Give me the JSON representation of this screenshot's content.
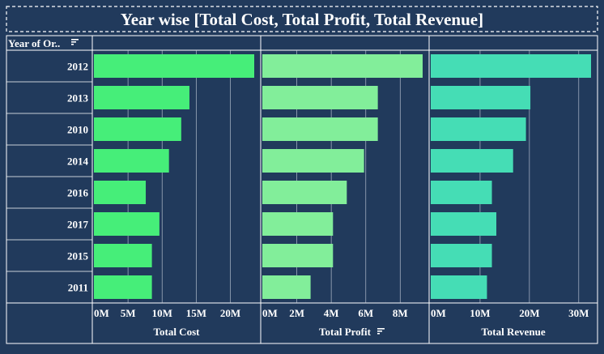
{
  "chart_data": {
    "type": "bar",
    "title": "Year wise [Total Cost, Total Profit, Total Revenue]",
    "row_header": "Year of Or..",
    "categories": [
      "2012",
      "2013",
      "2010",
      "2014",
      "2016",
      "2017",
      "2015",
      "2011"
    ],
    "series": [
      {
        "name": "Total Cost",
        "color": "#46ee79",
        "ticks": [
          "0M",
          "5M",
          "10M",
          "15M",
          "20M"
        ],
        "tick_values": [
          0,
          5,
          10,
          15,
          20
        ],
        "xlim": [
          0,
          23.5
        ],
        "has_sort_icon": false,
        "values": [
          23.5,
          14.0,
          12.8,
          11.0,
          7.6,
          9.6,
          8.5,
          8.5
        ]
      },
      {
        "name": "Total Profit",
        "color": "#82ee9a",
        "ticks": [
          "0M",
          "2M",
          "4M",
          "6M",
          "8M"
        ],
        "tick_values": [
          0,
          2,
          4,
          6,
          8
        ],
        "xlim": [
          0,
          9.3
        ],
        "has_sort_icon": true,
        "values": [
          9.3,
          6.7,
          6.7,
          5.9,
          4.9,
          4.1,
          4.1,
          2.8
        ]
      },
      {
        "name": "Total Revenue",
        "color": "#45ddb5",
        "ticks": [
          "0M",
          "10M",
          "20M",
          "30M"
        ],
        "tick_values": [
          0,
          10,
          20,
          30
        ],
        "xlim": [
          0,
          32.5
        ],
        "has_sort_icon": false,
        "values": [
          32.5,
          20.2,
          19.3,
          16.7,
          12.4,
          13.3,
          12.4,
          11.4
        ]
      }
    ],
    "grid": true,
    "legend": "none"
  }
}
